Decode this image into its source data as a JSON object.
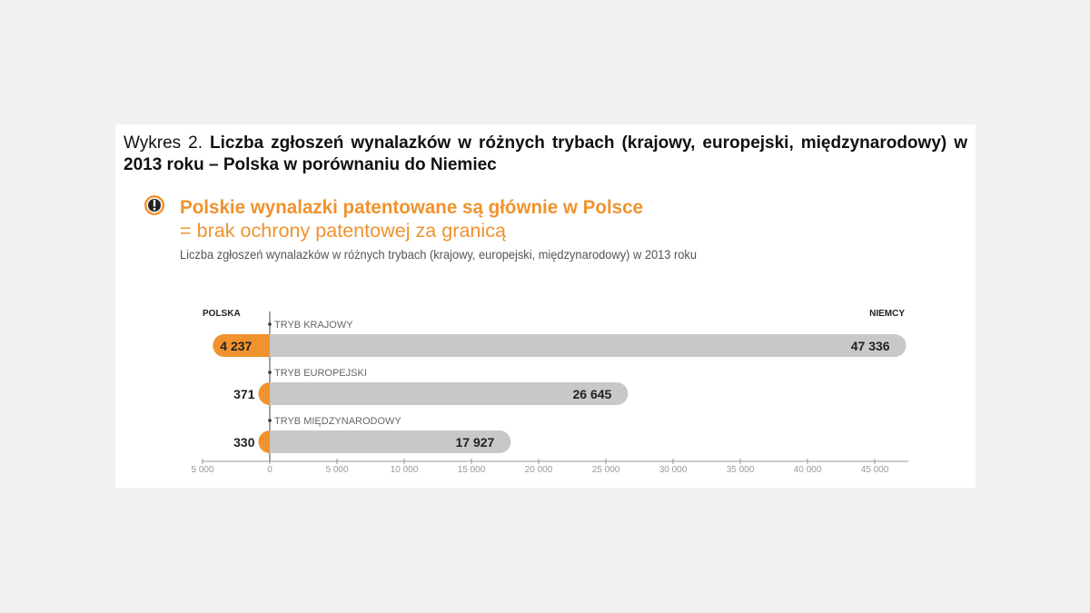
{
  "caption_label": "Wykres 2.",
  "caption_title": "Liczba zgłoszeń wynalazków w różnych trybach (krajowy, europejski, międzynarodowy) w 2013 roku – Polska w porównaniu do Niemiec",
  "chart_data": {
    "type": "diverging-bar",
    "title": [
      "Polskie wynalazki patentowane są głównie w Polsce",
      "= brak ochrony patentowej za granicą"
    ],
    "subtitle": "Liczba zgłoszeń wynalazków w różnych trybach (krajowy, europejski, międzynarodowy) w 2013 roku",
    "categories": [
      "TRYB KRAJOWY",
      "TRYB EUROPEJSKI",
      "TRYB MIĘDZYNARODOWY"
    ],
    "series": [
      {
        "name": "POLSKA",
        "color": "#f0922e",
        "side": "left",
        "values": [
          4237,
          371,
          330
        ],
        "value_labels": [
          "4 237",
          "371",
          "330"
        ]
      },
      {
        "name": "NIEMCY",
        "color": "#c8c8c8",
        "side": "right",
        "values": [
          47336,
          26645,
          17927
        ],
        "value_labels": [
          "47 336",
          "26 645",
          "17 927"
        ]
      }
    ],
    "xlim": [
      -5000,
      47500
    ],
    "xticks": [
      {
        "value": -5000,
        "label": "5 000"
      },
      0,
      {
        "value": 5000,
        "label": "5 000"
      },
      {
        "value": 10000,
        "label": "10 000"
      },
      {
        "value": 15000,
        "label": "15 000"
      },
      {
        "value": 20000,
        "label": "20 000"
      },
      {
        "value": 25000,
        "label": "25 000"
      },
      {
        "value": 30000,
        "label": "30 000"
      },
      {
        "value": 35000,
        "label": "35 000"
      },
      {
        "value": 40000,
        "label": "40 000"
      },
      {
        "value": 45000,
        "label": "45 000"
      }
    ]
  }
}
